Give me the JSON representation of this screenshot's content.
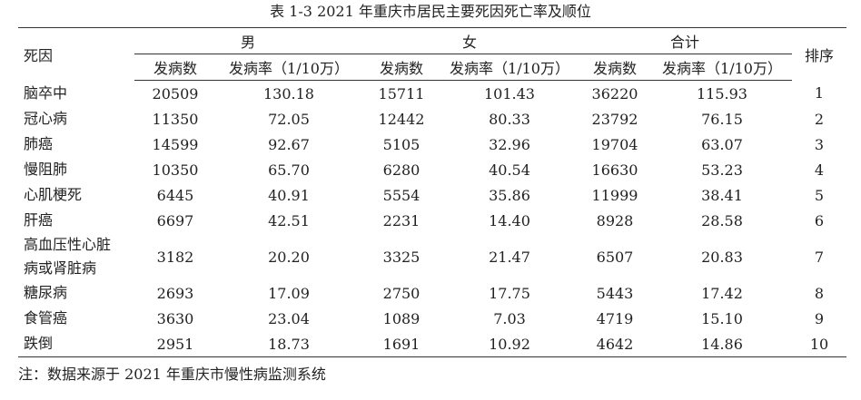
{
  "title": "表 1-3 2021 年重庆市居民主要死因死亡率及顺位",
  "table": {
    "cause_header": "死因",
    "groups": [
      "男",
      "女",
      "合计"
    ],
    "subheaders": [
      "发病数",
      "发病率（1/10万）",
      "发病数",
      "发病率（1/10万）",
      "发病数",
      "发病率（1/10万）"
    ],
    "rank_header": "排序",
    "rows": [
      [
        "脑卒中",
        "20509",
        "130.18",
        "15711",
        "101.43",
        "36220",
        "115.93",
        "1"
      ],
      [
        "冠心病",
        "11350",
        "72.05",
        "12442",
        "80.33",
        "23792",
        "76.15",
        "2"
      ],
      [
        "肺癌",
        "14599",
        "92.67",
        "5105",
        "32.96",
        "19704",
        "63.07",
        "3"
      ],
      [
        "慢阻肺",
        "10350",
        "65.70",
        "6280",
        "40.54",
        "16630",
        "53.23",
        "4"
      ],
      [
        "心肌梗死",
        "6445",
        "40.91",
        "5554",
        "35.86",
        "11999",
        "38.41",
        "5"
      ],
      [
        "肝癌",
        "6697",
        "42.51",
        "2231",
        "14.40",
        "8928",
        "28.58",
        "6"
      ],
      [
        "高血压性心脏病或肾脏病",
        "3182",
        "20.20",
        "3325",
        "21.47",
        "6507",
        "20.83",
        "7"
      ],
      [
        "糖尿病",
        "2693",
        "17.09",
        "2750",
        "17.75",
        "5443",
        "17.42",
        "8"
      ],
      [
        "食管癌",
        "3630",
        "23.04",
        "1089",
        "7.03",
        "4719",
        "15.10",
        "9"
      ],
      [
        "跌倒",
        "2951",
        "18.73",
        "1691",
        "10.92",
        "4642",
        "14.86",
        "10"
      ]
    ]
  },
  "note": "注：数据来源于 2021 年重庆市慢性病监测系统"
}
